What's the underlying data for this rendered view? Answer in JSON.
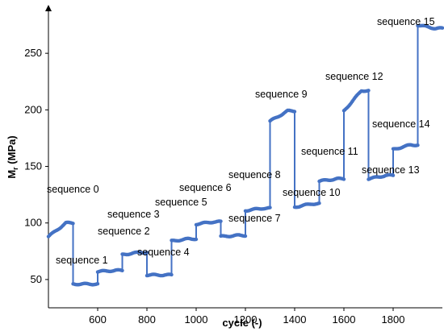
{
  "chart_data": {
    "type": "line",
    "title": "",
    "xlabel": "cycle (-)",
    "ylabel_main": "M",
    "ylabel_sub": "r",
    "ylabel_unit": " (MPa)",
    "xlim": [
      400,
      2000
    ],
    "ylim": [
      25,
      290
    ],
    "x_ticks": [
      600,
      800,
      1000,
      1200,
      1400,
      1600,
      1800
    ],
    "y_ticks": [
      50,
      100,
      150,
      200,
      250
    ],
    "grid": false,
    "series_color": "#4472c4",
    "sequences": [
      {
        "label": "sequence 0",
        "x_start": 400,
        "x_end": 500,
        "y_start": 88,
        "y_end": 100,
        "label_x": 0,
        "label_y": 0
      },
      {
        "label": "sequence 1",
        "x_start": 500,
        "x_end": 600,
        "y_start": 46,
        "y_end": 46,
        "label_x": 0,
        "label_y": 0
      },
      {
        "label": "sequence 2",
        "x_start": 600,
        "x_end": 700,
        "y_start": 57,
        "y_end": 58,
        "label_x": 0,
        "label_y": 0
      },
      {
        "label": "sequence 3",
        "x_start": 700,
        "x_end": 800,
        "y_start": 72,
        "y_end": 74,
        "label_x": 0,
        "label_y": 0
      },
      {
        "label": "sequence 4",
        "x_start": 800,
        "x_end": 900,
        "y_start": 54,
        "y_end": 54,
        "label_x": 0,
        "label_y": 0
      },
      {
        "label": "sequence 5",
        "x_start": 900,
        "x_end": 1000,
        "y_start": 84,
        "y_end": 86,
        "label_x": 0,
        "label_y": 0
      },
      {
        "label": "sequence 6",
        "x_start": 1000,
        "x_end": 1100,
        "y_start": 99,
        "y_end": 101,
        "label_x": 0,
        "label_y": 0
      },
      {
        "label": "sequence 7",
        "x_start": 1100,
        "x_end": 1200,
        "y_start": 88,
        "y_end": 89,
        "label_x": 0,
        "label_y": 0
      },
      {
        "label": "sequence 8",
        "x_start": 1200,
        "x_end": 1300,
        "y_start": 111,
        "y_end": 113,
        "label_x": 0,
        "label_y": 0
      },
      {
        "label": "sequence 9",
        "x_start": 1300,
        "x_end": 1400,
        "y_start": 190,
        "y_end": 199,
        "label_x": 0,
        "label_y": 0
      },
      {
        "label": "sequence 10",
        "x_start": 1400,
        "x_end": 1500,
        "y_start": 114,
        "y_end": 117,
        "label_x": 0,
        "label_y": 0
      },
      {
        "label": "sequence 11",
        "x_start": 1500,
        "x_end": 1600,
        "y_start": 137,
        "y_end": 139,
        "label_x": 0,
        "label_y": 0
      },
      {
        "label": "sequence 12",
        "x_start": 1600,
        "x_end": 1700,
        "y_start": 199,
        "y_end": 217,
        "label_x": 0,
        "label_y": 0
      },
      {
        "label": "sequence 13",
        "x_start": 1700,
        "x_end": 1800,
        "y_start": 139,
        "y_end": 142,
        "label_x": 0,
        "label_y": 0
      },
      {
        "label": "sequence 14",
        "x_start": 1800,
        "x_end": 1900,
        "y_start": 165,
        "y_end": 169,
        "label_x": 0,
        "label_y": 0
      },
      {
        "label": "sequence 15",
        "x_start": 1900,
        "x_end": 2000,
        "y_start": 275,
        "y_end": 272,
        "label_x": 0,
        "label_y": 0
      }
    ]
  }
}
